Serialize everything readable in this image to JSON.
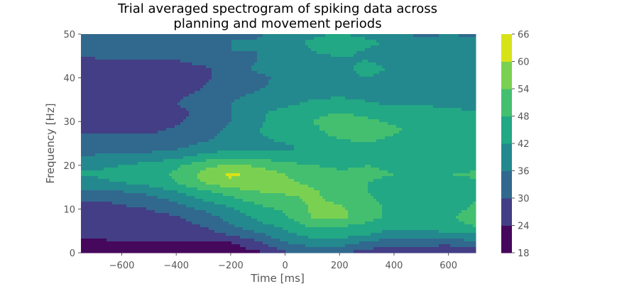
{
  "chart_data": {
    "type": "heatmap",
    "title_lines": [
      "Trial averaged spectrogram of spiking data across",
      "planning and movement periods"
    ],
    "xlabel": "Time [ms]",
    "ylabel": "Frequency [Hz]",
    "xlim": [
      -750,
      700
    ],
    "ylim": [
      0,
      50
    ],
    "xticks": [
      -600,
      -400,
      -200,
      0,
      200,
      400,
      600
    ],
    "xtick_labels": [
      "−600",
      "−400",
      "−200",
      "0",
      "200",
      "400",
      "600"
    ],
    "yticks": [
      0,
      10,
      20,
      30,
      40,
      50
    ],
    "ytick_labels": [
      "0",
      "10",
      "20",
      "30",
      "40",
      "50"
    ],
    "colorbar_levels": [
      18,
      24,
      30,
      36,
      42,
      48,
      54,
      60,
      66
    ],
    "colorbar_tick_labels": [
      "18",
      "24",
      "30",
      "36",
      "42",
      "48",
      "54",
      "60",
      "66"
    ],
    "level_colors": [
      "#46085c",
      "#433e85",
      "#31688e",
      "#23898e",
      "#22a884",
      "#44bf70",
      "#7ad151",
      "#d8e219"
    ],
    "grid": false,
    "x": [
      -750,
      -700,
      -600,
      -500,
      -400,
      -300,
      -200,
      -100,
      0,
      100,
      200,
      300,
      400,
      500,
      600,
      700
    ],
    "y": [
      0,
      2,
      4,
      6,
      8,
      10,
      12,
      14,
      16,
      18,
      20,
      22,
      24,
      26,
      28,
      30,
      32,
      34,
      36,
      38,
      40,
      42,
      44,
      46,
      48,
      50
    ],
    "z": [
      [
        20,
        20,
        21,
        21,
        21,
        21,
        21,
        23,
        29,
        31,
        31,
        27,
        27,
        27,
        25,
        27
      ],
      [
        21,
        21,
        22,
        22,
        22,
        22,
        23,
        28,
        35,
        38,
        38,
        34,
        31,
        31,
        31,
        33
      ],
      [
        27,
        27,
        27,
        27,
        27,
        27,
        30,
        34,
        40,
        44,
        44,
        42,
        38,
        38,
        40,
        41
      ],
      [
        27,
        27,
        28,
        28,
        28,
        30,
        35,
        40,
        43,
        49,
        48,
        46,
        44,
        44,
        46,
        48
      ],
      [
        27,
        27,
        28,
        28,
        29,
        33,
        38,
        43,
        47,
        54,
        56,
        50,
        46,
        45,
        47,
        51
      ],
      [
        28,
        28,
        29,
        30,
        33,
        37,
        41,
        46,
        49,
        55,
        55,
        51,
        46,
        46,
        46,
        49
      ],
      [
        30,
        30,
        31,
        33,
        37,
        42,
        46,
        50,
        52,
        55,
        53,
        49,
        46,
        47,
        46,
        48
      ],
      [
        35,
        35,
        36,
        38,
        42,
        47,
        51,
        54,
        55,
        55,
        51,
        48,
        46,
        47,
        46,
        47
      ],
      [
        40,
        40,
        42,
        44,
        48,
        54,
        59,
        57,
        55,
        53,
        50,
        48,
        47,
        48,
        46,
        47
      ],
      [
        43,
        43,
        45,
        46,
        49,
        56,
        61,
        58,
        54,
        51,
        49,
        49,
        48,
        48,
        48,
        49
      ],
      [
        40,
        40,
        42,
        44,
        47,
        52,
        55,
        53,
        50,
        48,
        47,
        48,
        47,
        46,
        44,
        46
      ],
      [
        37,
        37,
        38,
        38,
        40,
        44,
        47,
        46,
        44,
        44,
        45,
        47,
        46,
        45,
        44,
        45
      ],
      [
        32,
        32,
        33,
        34,
        35,
        38,
        40,
        41,
        41,
        43,
        45,
        47,
        46,
        44,
        43,
        44
      ],
      [
        33,
        33,
        31,
        31,
        33,
        35,
        38,
        41,
        43,
        46,
        48,
        49,
        47,
        45,
        44,
        44
      ],
      [
        29,
        29,
        29,
        29,
        31,
        34,
        37,
        42,
        45,
        47,
        50,
        53,
        49,
        46,
        45,
        43
      ],
      [
        26,
        26,
        26,
        27,
        29,
        33,
        36,
        41,
        45,
        48,
        50,
        49,
        47,
        46,
        45,
        43
      ],
      [
        25,
        25,
        25,
        25,
        28,
        32,
        36,
        41,
        44,
        47,
        48,
        47,
        45,
        45,
        44,
        42
      ],
      [
        26,
        26,
        26,
        27,
        30,
        33,
        36,
        39,
        41,
        43,
        45,
        43,
        41,
        42,
        40,
        41
      ],
      [
        27,
        27,
        27,
        28,
        29,
        31,
        35,
        37,
        40,
        41,
        41,
        40,
        40,
        40,
        39,
        39
      ],
      [
        27,
        27,
        27,
        28,
        28,
        30,
        33,
        35,
        38,
        39,
        40,
        41,
        40,
        39,
        38,
        38
      ],
      [
        26,
        26,
        26,
        27,
        27,
        29,
        32,
        35,
        37,
        38,
        40,
        42,
        40,
        39,
        37,
        37
      ],
      [
        27,
        27,
        27,
        27,
        27,
        29,
        33,
        37,
        38,
        39,
        40,
        44,
        41,
        38,
        37,
        38
      ],
      [
        29,
        29,
        30,
        30,
        30,
        32,
        34,
        36,
        37,
        39,
        41,
        42,
        40,
        37,
        36,
        37
      ],
      [
        33,
        33,
        33,
        33,
        34,
        35,
        36,
        36,
        39,
        42,
        44,
        41,
        38,
        37,
        40,
        40
      ],
      [
        31,
        31,
        32,
        33,
        34,
        35,
        36,
        37,
        40,
        43,
        47,
        44,
        40,
        37,
        38,
        37
      ],
      [
        30,
        30,
        31,
        33,
        34,
        35,
        36,
        35,
        38,
        41,
        42,
        40,
        37,
        35,
        36,
        35
      ]
    ]
  }
}
